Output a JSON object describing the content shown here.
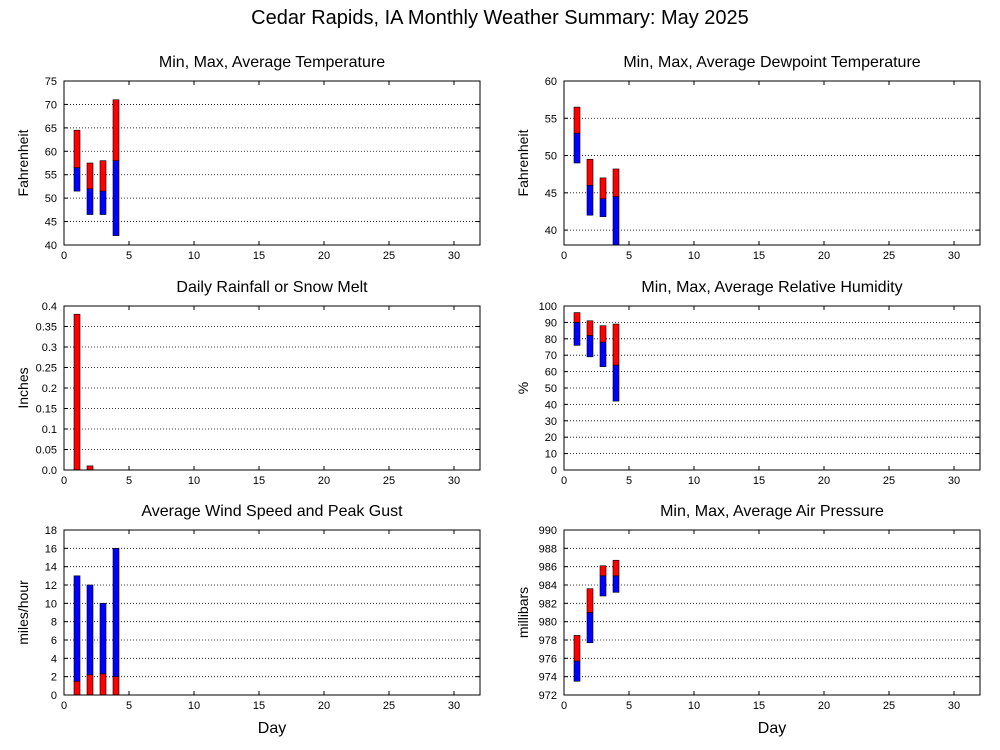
{
  "page": {
    "title": "Cedar Rapids, IA Monthly Weather Summary: May 2025"
  },
  "colors": {
    "upper": "#ff0000",
    "lower": "#0000ff",
    "frame": "#000000",
    "grid": "#000000"
  },
  "chart_data": [
    {
      "id": "temperature",
      "type": "bar",
      "style": "floating-stacked",
      "title": "Min, Max, Average Temperature",
      "xlabel": "",
      "ylabel": "Fahrenheit",
      "xlim": [
        0,
        32
      ],
      "ylim": [
        40,
        75
      ],
      "xticks": [
        "0",
        "5",
        "10",
        "15",
        "20",
        "25",
        "30"
      ],
      "yticks": [
        "40",
        "45",
        "50",
        "55",
        "60",
        "65",
        "70",
        "75"
      ],
      "grid": true,
      "series": [
        {
          "name": "Min",
          "values": [
            51.5,
            46.5,
            46.5,
            42
          ]
        },
        {
          "name": "Average",
          "values": [
            56.5,
            52,
            51.5,
            58
          ]
        },
        {
          "name": "Max",
          "values": [
            64.5,
            57.5,
            58,
            71
          ]
        }
      ],
      "days": [
        1,
        2,
        3,
        4
      ]
    },
    {
      "id": "dewpoint",
      "type": "bar",
      "style": "floating-stacked",
      "title": "Min, Max, Average Dewpoint Temperature",
      "xlabel": "",
      "ylabel": "Fahrenheit",
      "xlim": [
        0,
        32
      ],
      "ylim": [
        38,
        60
      ],
      "xticks": [
        "0",
        "5",
        "10",
        "15",
        "20",
        "25",
        "30"
      ],
      "yticks": [
        "40",
        "45",
        "50",
        "55",
        "60"
      ],
      "grid": true,
      "series": [
        {
          "name": "Min",
          "values": [
            49,
            42,
            41.8,
            38
          ]
        },
        {
          "name": "Average",
          "values": [
            53,
            46,
            44.2,
            44.5
          ]
        },
        {
          "name": "Max",
          "values": [
            56.5,
            49.5,
            47,
            48.2
          ]
        }
      ],
      "days": [
        1,
        2,
        3,
        4
      ]
    },
    {
      "id": "rainfall",
      "type": "bar",
      "style": "simple",
      "title": "Daily Rainfall or Snow Melt",
      "xlabel": "",
      "ylabel": "Inches",
      "xlim": [
        0,
        32
      ],
      "ylim": [
        0,
        0.4
      ],
      "xticks": [
        "0",
        "5",
        "10",
        "15",
        "20",
        "25",
        "30"
      ],
      "yticks": [
        "0.0",
        "0.05",
        "0.1",
        "0.15",
        "0.2",
        "0.25",
        "0.3",
        "0.35",
        "0.4"
      ],
      "grid": true,
      "series": [
        {
          "name": "Rainfall",
          "values": [
            0.38,
            0.01,
            0,
            0
          ]
        }
      ],
      "days": [
        1,
        2,
        3,
        4
      ]
    },
    {
      "id": "humidity",
      "type": "bar",
      "style": "floating-stacked",
      "title": "Min, Max, Average Relative Humidity",
      "xlabel": "",
      "ylabel": "%",
      "xlim": [
        0,
        32
      ],
      "ylim": [
        0,
        100
      ],
      "xticks": [
        "0",
        "5",
        "10",
        "15",
        "20",
        "25",
        "30"
      ],
      "yticks": [
        "0",
        "10",
        "20",
        "30",
        "40",
        "50",
        "60",
        "70",
        "80",
        "90",
        "100"
      ],
      "grid": true,
      "series": [
        {
          "name": "Min",
          "values": [
            76,
            69,
            63,
            42
          ]
        },
        {
          "name": "Average",
          "values": [
            90,
            82,
            78,
            64
          ]
        },
        {
          "name": "Max",
          "values": [
            96,
            91,
            88,
            89
          ]
        }
      ],
      "days": [
        1,
        2,
        3,
        4
      ]
    },
    {
      "id": "wind",
      "type": "bar",
      "style": "stacked",
      "title": "Average Wind Speed and Peak Gust",
      "xlabel": "Day",
      "ylabel": "miles/hour",
      "xlim": [
        0,
        32
      ],
      "ylim": [
        0,
        18
      ],
      "xticks": [
        "0",
        "5",
        "10",
        "15",
        "20",
        "25",
        "30"
      ],
      "yticks": [
        "0",
        "2",
        "4",
        "6",
        "8",
        "10",
        "12",
        "14",
        "16",
        "18"
      ],
      "grid": true,
      "series": [
        {
          "name": "Average Wind Speed",
          "values": [
            1.5,
            2.2,
            2.3,
            2
          ]
        },
        {
          "name": "Peak Gust",
          "values": [
            13,
            12,
            10,
            16
          ]
        }
      ],
      "days": [
        1,
        2,
        3,
        4
      ]
    },
    {
      "id": "pressure",
      "type": "bar",
      "style": "floating-stacked",
      "title": "Min, Max, Average Air Pressure",
      "xlabel": "Day",
      "ylabel": "millibars",
      "xlim": [
        0,
        32
      ],
      "ylim": [
        972,
        990
      ],
      "xticks": [
        "0",
        "5",
        "10",
        "15",
        "20",
        "25",
        "30"
      ],
      "yticks": [
        "972",
        "974",
        "976",
        "978",
        "980",
        "982",
        "984",
        "986",
        "988",
        "990"
      ],
      "grid": true,
      "series": [
        {
          "name": "Min",
          "values": [
            973.5,
            977.7,
            982.8,
            983.2
          ]
        },
        {
          "name": "Average",
          "values": [
            975.7,
            981,
            985,
            985
          ]
        },
        {
          "name": "Max",
          "values": [
            978.5,
            983.6,
            986.1,
            986.7
          ]
        }
      ],
      "days": [
        1,
        2,
        3,
        4
      ]
    }
  ]
}
